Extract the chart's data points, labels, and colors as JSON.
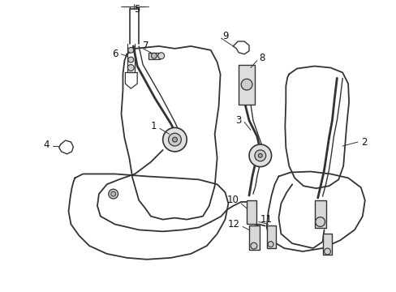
{
  "background_color": "#ffffff",
  "line_color": "#333333",
  "text_color": "#111111",
  "label_fontsize": 8.5,
  "fig_width": 4.89,
  "fig_height": 3.6,
  "dpi": 100
}
